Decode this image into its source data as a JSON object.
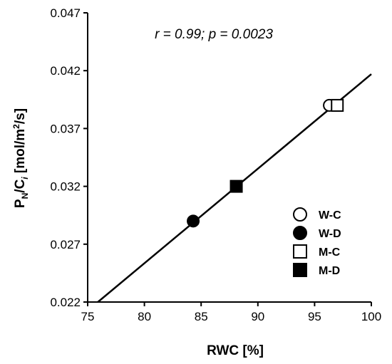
{
  "chart_data": {
    "type": "scatter",
    "xlabel": "RWC [%]",
    "ylabel": {
      "base": "P",
      "sub1": "N",
      "mid": "/C",
      "sub2": "i",
      "unit_a": " [mol/m",
      "sup": "2",
      "unit_b": "/s]"
    },
    "xlim": [
      75,
      100
    ],
    "ylim": [
      0.022,
      0.047
    ],
    "x_ticks": [
      75,
      80,
      85,
      90,
      95,
      100
    ],
    "x_tick_labels": [
      "75",
      "80",
      "85",
      "90",
      "95",
      "100"
    ],
    "y_ticks": [
      0.022,
      0.027,
      0.032,
      0.037,
      0.042,
      0.047
    ],
    "y_tick_labels": [
      "0.022",
      "0.027",
      "0.032",
      "0.037",
      "0.042",
      "0.047"
    ],
    "annotation": "r = 0.99; p = 0.0023",
    "grid": false,
    "legend_position": "bottom-right",
    "series": [
      {
        "name": "W-C",
        "marker": "circle-open",
        "x": [
          96.3
        ],
        "y": [
          0.039
        ]
      },
      {
        "name": "W-D",
        "marker": "circle-filled",
        "x": [
          84.3
        ],
        "y": [
          0.029
        ]
      },
      {
        "name": "M-C",
        "marker": "square-open",
        "x": [
          97.0
        ],
        "y": [
          0.039
        ]
      },
      {
        "name": "M-D",
        "marker": "square-filled",
        "x": [
          88.1
        ],
        "y": [
          0.032
        ]
      }
    ],
    "regression": {
      "x": [
        75.9,
        100
      ],
      "y": [
        0.022,
        0.0417
      ]
    }
  }
}
